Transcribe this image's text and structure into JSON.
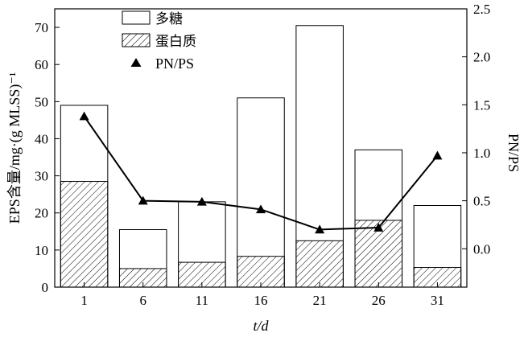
{
  "chart_data": {
    "type": "bar",
    "categories": [
      "1",
      "6",
      "11",
      "16",
      "21",
      "26",
      "31"
    ],
    "series": [
      {
        "name": "多糖",
        "kind": "bar",
        "fill": "none",
        "values": [
          49,
          15.5,
          23,
          51,
          70.5,
          37,
          22
        ]
      },
      {
        "name": "蛋白质",
        "kind": "bar",
        "fill": "hatched",
        "values": [
          28.5,
          5,
          6.7,
          8.3,
          12.5,
          18,
          5.3
        ]
      },
      {
        "name": "PN/PS",
        "kind": "line",
        "marker": "triangle",
        "axis": "right",
        "values": [
          1.38,
          0.5,
          0.49,
          0.41,
          0.2,
          0.22,
          0.97
        ]
      }
    ],
    "xlabel": "t/d",
    "ylabel": "EPS含量/mg·(g MLSS)⁻¹",
    "y2label": "PN/PS",
    "ylim": [
      0,
      75
    ],
    "y2lim": [
      -0.4,
      2.5
    ],
    "yticks": [
      "0",
      "10",
      "20",
      "30",
      "40",
      "50",
      "60",
      "70"
    ],
    "y2ticks": [
      "0.0",
      "0.5",
      "1.0",
      "1.5",
      "2.0",
      "2.5"
    ],
    "legend_position": "top-left",
    "grid": false,
    "colors": {
      "line": "#000000",
      "bar_edge": "#000000",
      "background": "#ffffff"
    }
  }
}
